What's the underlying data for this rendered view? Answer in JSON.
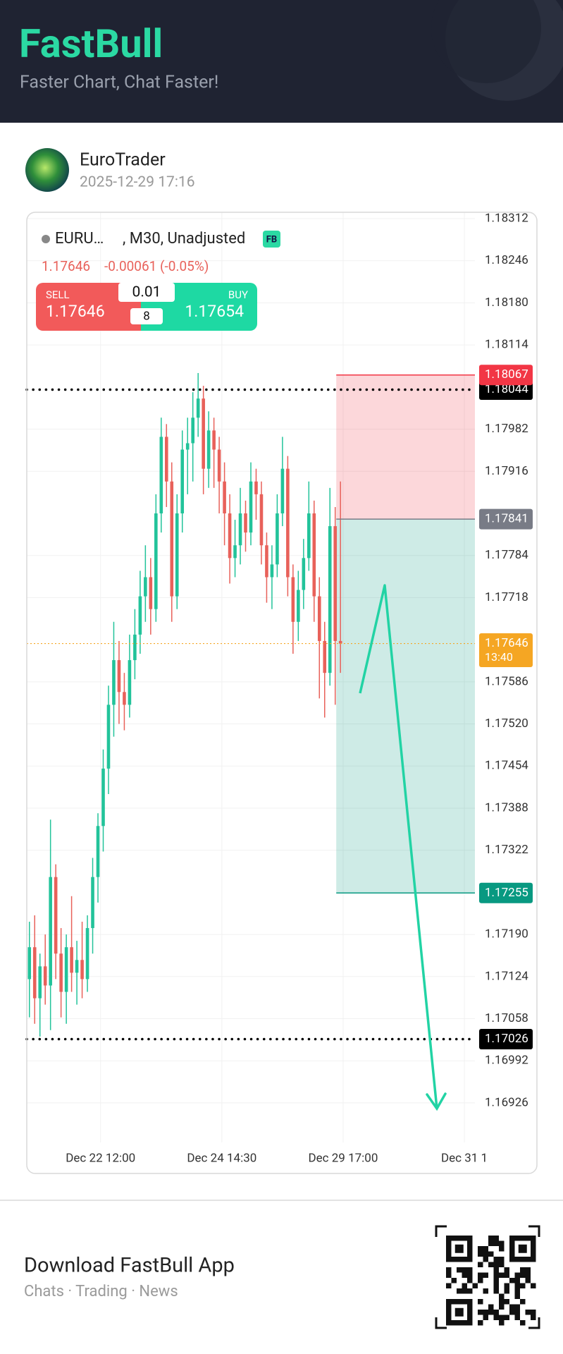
{
  "header": {
    "brand": "FastBull",
    "tagline": "Faster Chart, Chat Faster!"
  },
  "post": {
    "author": "EuroTrader",
    "time": "2025-12-29 17:16"
  },
  "chart_data": {
    "type": "candlestick",
    "symbol": "EURU…",
    "title": ", M30, Unadjusted",
    "badge": "FB",
    "price": "1.17646",
    "change": "-0.00061 (-0.05%)",
    "trade": {
      "sell_label": "SELL",
      "sell_price": "1.17646",
      "lot": "0.01",
      "count": "8",
      "buy_label": "BUY",
      "buy_price": "1.17654"
    },
    "up_color": "#22c39a",
    "down_color": "#e8615a",
    "ylim": [
      1.16864,
      1.18322
    ],
    "yticks": [
      {
        "value": 1.18312,
        "label": "1.18312"
      },
      {
        "value": 1.18246,
        "label": "1.18246"
      },
      {
        "value": 1.1818,
        "label": "1.18180"
      },
      {
        "value": 1.18114,
        "label": "1.18114"
      },
      {
        "value": 1.17982,
        "label": "1.17982"
      },
      {
        "value": 1.17916,
        "label": "1.17916"
      },
      {
        "value": 1.17784,
        "label": "1.17784"
      },
      {
        "value": 1.17718,
        "label": "1.17718"
      },
      {
        "value": 1.17586,
        "label": "1.17586"
      },
      {
        "value": 1.1752,
        "label": "1.17520"
      },
      {
        "value": 1.17454,
        "label": "1.17454"
      },
      {
        "value": 1.17388,
        "label": "1.17388"
      },
      {
        "value": 1.17322,
        "label": "1.17322"
      },
      {
        "value": 1.1719,
        "label": "1.17190"
      },
      {
        "value": 1.17124,
        "label": "1.17124"
      },
      {
        "value": 1.17058,
        "label": "1.17058"
      },
      {
        "value": 1.16992,
        "label": "1.16992"
      },
      {
        "value": 1.16926,
        "label": "1.16926"
      }
    ],
    "xlim": [
      0,
      85
    ],
    "xticks": [
      {
        "value": 14,
        "label": "Dec 22 12:00"
      },
      {
        "value": 37,
        "label": "Dec 24 14:30"
      },
      {
        "value": 60,
        "label": "Dec 29 17:00"
      },
      {
        "value": 83,
        "label": "Dec 31 1"
      }
    ],
    "grid": true,
    "candles": [
      [
        1.1712,
        1.1721,
        1.1706,
        1.1717
      ],
      [
        1.1717,
        1.1722,
        1.1705,
        1.1709
      ],
      [
        1.1709,
        1.1716,
        1.1703,
        1.1714
      ],
      [
        1.1714,
        1.1719,
        1.1708,
        1.1711
      ],
      [
        1.1711,
        1.1737,
        1.1704,
        1.1728
      ],
      [
        1.1728,
        1.173,
        1.1712,
        1.1716
      ],
      [
        1.1716,
        1.172,
        1.1706,
        1.171
      ],
      [
        1.171,
        1.1719,
        1.1705,
        1.1717
      ],
      [
        1.1717,
        1.1725,
        1.171,
        1.1713
      ],
      [
        1.1713,
        1.1718,
        1.1708,
        1.1715
      ],
      [
        1.1715,
        1.1721,
        1.1709,
        1.1712
      ],
      [
        1.1712,
        1.1722,
        1.171,
        1.172
      ],
      [
        1.172,
        1.1731,
        1.1716,
        1.1728
      ],
      [
        1.1728,
        1.1738,
        1.1724,
        1.1736
      ],
      [
        1.1736,
        1.1748,
        1.1732,
        1.1745
      ],
      [
        1.1745,
        1.1758,
        1.1741,
        1.1755
      ],
      [
        1.1755,
        1.1768,
        1.175,
        1.1762
      ],
      [
        1.1762,
        1.1765,
        1.1752,
        1.1757
      ],
      [
        1.1757,
        1.176,
        1.1751,
        1.1755
      ],
      [
        1.1755,
        1.1766,
        1.1753,
        1.1762
      ],
      [
        1.1762,
        1.177,
        1.1759,
        1.1766
      ],
      [
        1.1766,
        1.1776,
        1.1763,
        1.1772
      ],
      [
        1.1772,
        1.178,
        1.1768,
        1.1775
      ],
      [
        1.1775,
        1.1778,
        1.1766,
        1.177
      ],
      [
        1.177,
        1.1788,
        1.1768,
        1.1785
      ],
      [
        1.1785,
        1.18,
        1.1782,
        1.1797
      ],
      [
        1.1797,
        1.1799,
        1.1786,
        1.179
      ],
      [
        1.179,
        1.1793,
        1.1768,
        1.1772
      ],
      [
        1.1772,
        1.1788,
        1.177,
        1.1785
      ],
      [
        1.1785,
        1.1798,
        1.1782,
        1.1795
      ],
      [
        1.1795,
        1.18,
        1.1788,
        1.1796
      ],
      [
        1.1796,
        1.1804,
        1.179,
        1.18
      ],
      [
        1.18,
        1.1807,
        1.1797,
        1.1803
      ],
      [
        1.1803,
        1.1805,
        1.1788,
        1.1792
      ],
      [
        1.1792,
        1.1801,
        1.1789,
        1.1798
      ],
      [
        1.1798,
        1.18,
        1.1789,
        1.1795
      ],
      [
        1.1795,
        1.1797,
        1.1785,
        1.179
      ],
      [
        1.179,
        1.1793,
        1.178,
        1.1785
      ],
      [
        1.1785,
        1.1788,
        1.1774,
        1.1778
      ],
      [
        1.1778,
        1.1784,
        1.1775,
        1.178
      ],
      [
        1.178,
        1.1789,
        1.1777,
        1.1785
      ],
      [
        1.1785,
        1.1787,
        1.1779,
        1.1782
      ],
      [
        1.1782,
        1.1793,
        1.178,
        1.179
      ],
      [
        1.179,
        1.1792,
        1.1784,
        1.1788
      ],
      [
        1.1788,
        1.179,
        1.1777,
        1.178
      ],
      [
        1.178,
        1.1782,
        1.1771,
        1.1775
      ],
      [
        1.1775,
        1.178,
        1.177,
        1.1777
      ],
      [
        1.1777,
        1.1788,
        1.1775,
        1.1785
      ],
      [
        1.1785,
        1.1797,
        1.1783,
        1.1792
      ],
      [
        1.1792,
        1.1794,
        1.1772,
        1.1775
      ],
      [
        1.1775,
        1.1777,
        1.1763,
        1.1768
      ],
      [
        1.1768,
        1.1776,
        1.1765,
        1.1773
      ],
      [
        1.1773,
        1.1781,
        1.177,
        1.1778
      ],
      [
        1.1778,
        1.179,
        1.1776,
        1.1785
      ],
      [
        1.1785,
        1.1787,
        1.1768,
        1.1772
      ],
      [
        1.1772,
        1.1775,
        1.1756,
        1.1765
      ],
      [
        1.1765,
        1.1768,
        1.1753,
        1.176
      ],
      [
        1.176,
        1.1789,
        1.1758,
        1.1783
      ],
      [
        1.1783,
        1.1786,
        1.1755,
        1.1765
      ],
      [
        1.1765,
        1.179,
        1.176,
        1.17646
      ]
    ],
    "markers": [
      {
        "value": 1.18044,
        "role": "level",
        "color": "#000000"
      },
      {
        "value": 1.18067,
        "role": "stop",
        "color": "#f23645"
      },
      {
        "value": 1.17841,
        "role": "entry",
        "color": "#787b86"
      },
      {
        "value": 1.17646,
        "role": "price",
        "color": "#f5a623",
        "countdown": "13:40"
      },
      {
        "value": 1.17255,
        "role": "target",
        "color": "#089981"
      },
      {
        "value": 1.17026,
        "role": "level",
        "color": "#000000"
      }
    ]
  },
  "footer": {
    "title": "Download FastBull App",
    "subtitle": "Chats · Trading · News"
  }
}
